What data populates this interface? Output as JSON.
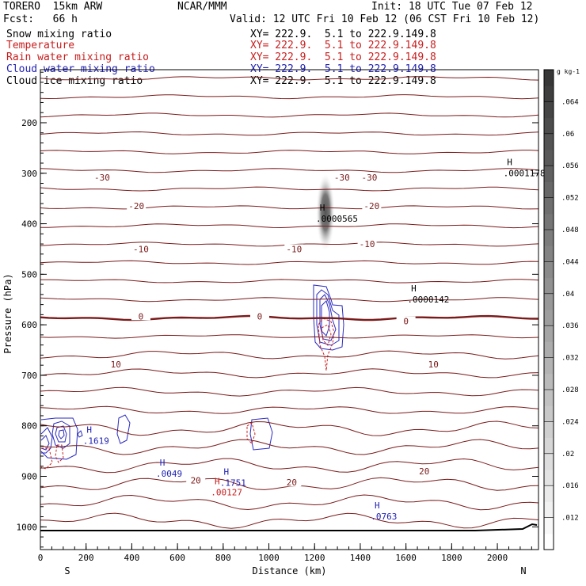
{
  "header": {
    "model": "TORERO  15km ARW",
    "org": "NCAR/MMM",
    "init": "Init: 18 UTC Tue 07 Feb 12",
    "fcst": "Fcst:   66 h",
    "valid": "Valid: 12 UTC Fri 10 Feb 12 (06 CST Fri 10 Feb 12)"
  },
  "fields": [
    {
      "name": "Snow mixing ratio",
      "xy": "XY= 222.9.  5.1 to 222.9.149.8",
      "color": "#000000"
    },
    {
      "name": "Temperature",
      "xy": "XY= 222.9.  5.1 to 222.9.149.8",
      "color": "#c81e1e"
    },
    {
      "name": "Rain water mixing ratio",
      "xy": "XY= 222.9.  5.1 to 222.9.149.8",
      "color": "#c81e1e"
    },
    {
      "name": "Cloud water mixing ratio",
      "xy": "XY= 222.9.  5.1 to 222.9.149.8",
      "color": "#1e1eb4"
    },
    {
      "name": "Cloud ice mixing ratio",
      "xy": "XY= 222.9.  5.1 to 222.9.149.8",
      "color": "#000000"
    }
  ],
  "chart_data": {
    "type": "contour",
    "xlabel": "Distance (km)",
    "ylabel": "Pressure (hPa)",
    "x_ticks": [
      0,
      200,
      400,
      600,
      800,
      1000,
      1200,
      1400,
      1600,
      1800,
      2000
    ],
    "y_ticks": [
      200,
      300,
      400,
      500,
      600,
      700,
      800,
      900,
      1000
    ],
    "xlim": [
      0,
      2180
    ],
    "ylim": [
      1045,
      95
    ],
    "x_end_labels": {
      "left": "S",
      "right": "N"
    },
    "temperature_label_values": [
      "-30",
      "-20",
      "-10",
      "0",
      "10",
      "20"
    ],
    "temperature_labels": [
      {
        "text": "-30",
        "x": 270,
        "p": 308
      },
      {
        "text": "-30",
        "x": 1320,
        "p": 308
      },
      {
        "text": "-30",
        "x": 1440,
        "p": 308
      },
      {
        "text": "-20",
        "x": 420,
        "p": 365
      },
      {
        "text": "-20",
        "x": 1450,
        "p": 365
      },
      {
        "text": "-10",
        "x": 440,
        "p": 450
      },
      {
        "text": "-10",
        "x": 1110,
        "p": 450
      },
      {
        "text": "-10",
        "x": 1430,
        "p": 440
      },
      {
        "text": "0",
        "x": 440,
        "p": 583
      },
      {
        "text": "0",
        "x": 960,
        "p": 583
      },
      {
        "text": "0",
        "x": 1600,
        "p": 593
      },
      {
        "text": "10",
        "x": 330,
        "p": 678
      },
      {
        "text": "10",
        "x": 1720,
        "p": 678
      },
      {
        "text": "20",
        "x": 680,
        "p": 908
      },
      {
        "text": "20",
        "x": 1100,
        "p": 912
      },
      {
        "text": "20",
        "x": 1680,
        "p": 890
      }
    ],
    "maxima": [
      {
        "mark": "H",
        "value": ".0001178",
        "x": 2040,
        "p": 290,
        "color": "#000000"
      },
      {
        "mark": "H",
        "value": ".0000565",
        "x": 1220,
        "p": 380,
        "color": "#000000"
      },
      {
        "mark": "H",
        "value": ".0000142",
        "x": 1620,
        "p": 540,
        "color": "#000000"
      },
      {
        "mark": "H",
        "value": ".1619",
        "x": 200,
        "p": 820,
        "color": "#1e1eb4"
      },
      {
        "mark": "H",
        "value": ".0049",
        "x": 520,
        "p": 885,
        "color": "#1e1eb4"
      },
      {
        "mark": "H",
        "value": ".1751",
        "x": 800,
        "p": 903,
        "color": "#1e1eb4"
      },
      {
        "mark": "H",
        "value": ".0763",
        "x": 1460,
        "p": 970,
        "color": "#1e1eb4"
      },
      {
        "mark": "H",
        "value": ".00127",
        "x": 760,
        "p": 922,
        "color": "#c81e1e"
      }
    ],
    "colorbar": {
      "unit": "g kg-1",
      "ticks": [
        ".012",
        ".016",
        ".02",
        ".024",
        ".028",
        ".032",
        ".036",
        ".04",
        ".044",
        ".048",
        ".052",
        ".056",
        ".06",
        ".064"
      ],
      "range": [
        0.008,
        0.068
      ]
    }
  }
}
